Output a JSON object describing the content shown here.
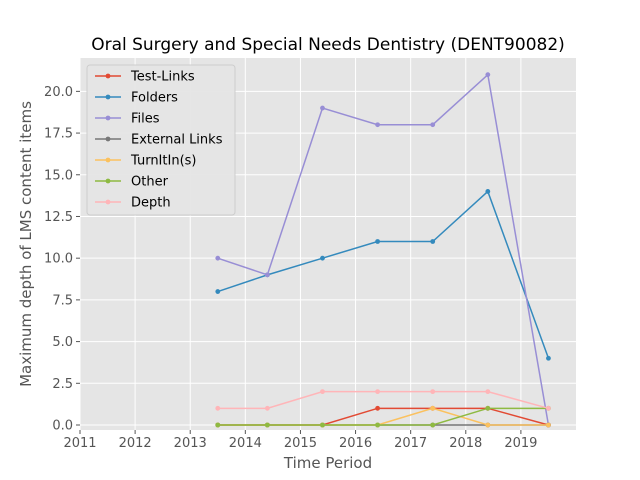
{
  "chart_data": {
    "type": "line",
    "title": "Oral Surgery and Special Needs Dentistry (DENT90082)",
    "xlabel": "Time Period",
    "ylabel": "Maximum depth of LMS content items",
    "xlim": [
      2011,
      2020
    ],
    "ylim": [
      -0.3,
      22.0
    ],
    "x_ticks": [
      "2011",
      "2012",
      "2013",
      "2014",
      "2015",
      "2016",
      "2017",
      "2018",
      "2019"
    ],
    "y_ticks": [
      "0.0",
      "2.5",
      "5.0",
      "7.5",
      "10.0",
      "12.5",
      "15.0",
      "17.5",
      "20.0"
    ],
    "grid": true,
    "legend_position": "top-left",
    "x": [
      2013.5,
      2014.4,
      2015.4,
      2016.4,
      2017.4,
      2018.4,
      2019.5
    ],
    "series": [
      {
        "name": "Test-Links",
        "color": "#E24A33",
        "values": [
          0,
          0,
          0,
          1,
          1,
          1,
          0
        ]
      },
      {
        "name": "Folders",
        "color": "#348ABD",
        "values": [
          8,
          9,
          10,
          11,
          11,
          14,
          4
        ]
      },
      {
        "name": "Files",
        "color": "#988ED5",
        "values": [
          10,
          9,
          19,
          18,
          18,
          21,
          0
        ]
      },
      {
        "name": "External Links",
        "color": "#777777",
        "values": [
          0,
          0,
          0,
          0,
          0,
          0,
          0
        ]
      },
      {
        "name": "TurnItIn(s)",
        "color": "#FBC15E",
        "values": [
          0,
          0,
          0,
          0,
          1,
          0,
          0
        ]
      },
      {
        "name": "Other",
        "color": "#8EBA42",
        "values": [
          0,
          0,
          0,
          0,
          0,
          1,
          1
        ]
      },
      {
        "name": "Depth",
        "color": "#FFB5B8",
        "values": [
          1,
          1,
          2,
          2,
          2,
          2,
          1
        ]
      }
    ]
  }
}
